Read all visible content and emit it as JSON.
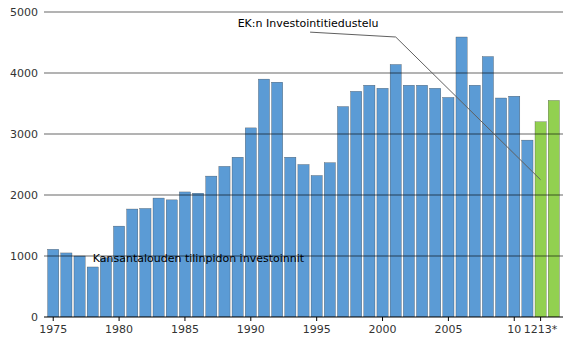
{
  "chart_data": {
    "type": "bar",
    "categories": [
      "1975",
      null,
      null,
      null,
      null,
      "1980",
      null,
      null,
      null,
      null,
      "1985",
      null,
      null,
      null,
      null,
      "1990",
      null,
      null,
      null,
      null,
      "1995",
      null,
      null,
      null,
      null,
      "2000",
      null,
      null,
      null,
      null,
      "2005",
      null,
      null,
      null,
      null,
      "10",
      null,
      "1213*",
      null
    ],
    "values": [
      1110,
      1050,
      1000,
      820,
      970,
      1490,
      1770,
      1780,
      1950,
      1920,
      2050,
      2030,
      2310,
      2470,
      2620,
      3100,
      3900,
      3850,
      2620,
      2500,
      2320,
      2530,
      3450,
      3700,
      3800,
      3750,
      4140,
      3800,
      3800,
      3750,
      3600,
      4590,
      3800,
      4270,
      3590,
      3620,
      2900,
      3200,
      3550
    ],
    "colors": [
      "#5b9bd5",
      "#5b9bd5",
      "#5b9bd5",
      "#5b9bd5",
      "#5b9bd5",
      "#5b9bd5",
      "#5b9bd5",
      "#5b9bd5",
      "#5b9bd5",
      "#5b9bd5",
      "#5b9bd5",
      "#5b9bd5",
      "#5b9bd5",
      "#5b9bd5",
      "#5b9bd5",
      "#5b9bd5",
      "#5b9bd5",
      "#5b9bd5",
      "#5b9bd5",
      "#5b9bd5",
      "#5b9bd5",
      "#5b9bd5",
      "#5b9bd5",
      "#5b9bd5",
      "#5b9bd5",
      "#5b9bd5",
      "#5b9bd5",
      "#5b9bd5",
      "#5b9bd5",
      "#5b9bd5",
      "#5b9bd5",
      "#5b9bd5",
      "#5b9bd5",
      "#5b9bd5",
      "#5b9bd5",
      "#5b9bd5",
      "#5b9bd5",
      "#92d050",
      "#92d050"
    ],
    "ylim": [
      0,
      5000
    ],
    "yticks": [
      0,
      1000,
      2000,
      3000,
      4000,
      5000
    ],
    "grid": true,
    "annotations": [
      {
        "text": "EK:n Investointitiedustelu"
      },
      {
        "text": "Kansantalouden tilinpidon investoinnit"
      }
    ]
  }
}
